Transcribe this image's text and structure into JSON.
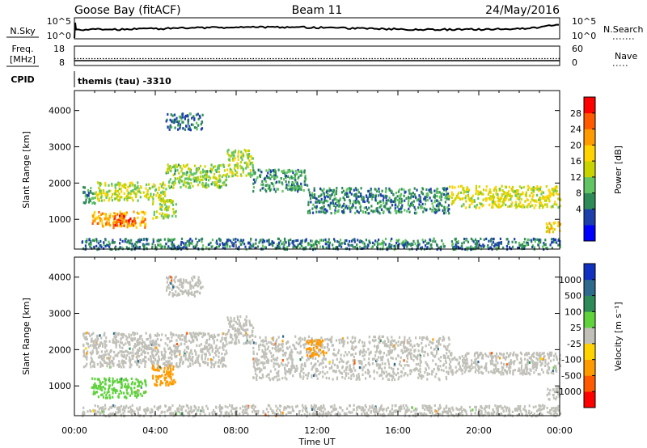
{
  "header": {
    "station": "Goose Bay (fitACF)",
    "beam": "Beam 11",
    "date": "24/May/2016"
  },
  "noise_panel": {
    "left_label": "N.Sky",
    "left_ticks": [
      "10^5",
      "10^0"
    ],
    "right_label": "N.Search",
    "right_ticks": [
      "10^5",
      "10^0"
    ]
  },
  "freq_panel": {
    "label_line1": "Freq.",
    "label_line2": "[MHz]",
    "left_ticks": [
      "18",
      "8"
    ],
    "right_label": "Nave",
    "right_ticks": [
      "60",
      "0"
    ]
  },
  "cpid": {
    "label": "CPID",
    "value": "themis (tau) -3310"
  },
  "power_panel": {
    "ylabel": "Slant Range [km]",
    "yticks": [
      "4000",
      "3000",
      "2000",
      "1000"
    ],
    "colorbar_label": "Power [dB]",
    "colorbar_ticks": [
      "28",
      "24",
      "20",
      "16",
      "12",
      "8",
      "4"
    ],
    "colors": [
      "#0000ff",
      "#1c3faa",
      "#2e8b57",
      "#62c462",
      "#c8d400",
      "#ffd200",
      "#ff9b00",
      "#ff5a00",
      "#ff0000"
    ]
  },
  "velocity_panel": {
    "ylabel": "Slant Range [km]",
    "yticks": [
      "4000",
      "3000",
      "2000",
      "1000"
    ],
    "colorbar_label": "Velocity [m s⁻¹]",
    "colorbar_ticks": [
      "1000",
      "500",
      "100",
      "25",
      "-25",
      "-100",
      "-500",
      "-1000"
    ],
    "colors": [
      "#1030c0",
      "#2d6a8c",
      "#2e8b57",
      "#5fd23c",
      "#c0c0b8",
      "#ffd200",
      "#ff9b00",
      "#ff5a00",
      "#ff0000"
    ]
  },
  "x_axis": {
    "label": "Time UT",
    "ticks": [
      "00:00",
      "04:00",
      "08:00",
      "12:00",
      "16:00",
      "20:00",
      "00:00"
    ]
  },
  "chart_data": [
    {
      "type": "heatmap",
      "name": "power",
      "x_range_hours": [
        0,
        24
      ],
      "y_range_km": [
        180,
        4550
      ],
      "value_unit": "dB",
      "value_range": [
        0,
        32
      ],
      "regions": [
        {
          "x0": 0.4,
          "x1": 1.0,
          "y0": 1450,
          "y1": 1950,
          "value": 10
        },
        {
          "x0": 1.0,
          "x1": 4.5,
          "y0": 1550,
          "y1": 2050,
          "value": 16
        },
        {
          "x0": 4.5,
          "x1": 7.5,
          "y0": 1900,
          "y1": 2550,
          "value": 14
        },
        {
          "x0": 7.5,
          "x1": 8.8,
          "y0": 2200,
          "y1": 2950,
          "value": 15
        },
        {
          "x0": 8.8,
          "x1": 11.5,
          "y0": 1800,
          "y1": 2400,
          "value": 10
        },
        {
          "x0": 11.5,
          "x1": 18.5,
          "y0": 1200,
          "y1": 1900,
          "value": 9
        },
        {
          "x0": 18.5,
          "x1": 24.0,
          "y0": 1350,
          "y1": 1950,
          "value": 17
        },
        {
          "x0": 0.8,
          "x1": 3.5,
          "y0": 800,
          "y1": 1250,
          "value": 22
        },
        {
          "x0": 1.9,
          "x1": 3.0,
          "y0": 850,
          "y1": 1150,
          "value": 28
        },
        {
          "x0": 3.8,
          "x1": 5.0,
          "y0": 1050,
          "y1": 1600,
          "value": 15
        },
        {
          "x0": 4.5,
          "x1": 6.3,
          "y0": 3500,
          "y1": 3950,
          "value": 8
        },
        {
          "x0": 0.3,
          "x1": 24.0,
          "y0": 200,
          "y1": 500,
          "value": 8
        },
        {
          "x0": 23.3,
          "x1": 24.0,
          "y0": 650,
          "y1": 950,
          "value": 20
        }
      ]
    },
    {
      "type": "heatmap",
      "name": "velocity",
      "x_range_hours": [
        0,
        24
      ],
      "y_range_km": [
        180,
        4550
      ],
      "value_unit": "m s^-1",
      "value_range": [
        -1000,
        1000
      ],
      "regions": [
        {
          "x0": 0.4,
          "x1": 7.5,
          "y0": 1550,
          "y1": 2500,
          "value": 0
        },
        {
          "x0": 7.5,
          "x1": 8.8,
          "y0": 2200,
          "y1": 2950,
          "value": 0
        },
        {
          "x0": 8.8,
          "x1": 18.5,
          "y0": 1200,
          "y1": 2400,
          "value": 0
        },
        {
          "x0": 18.5,
          "x1": 24.0,
          "y0": 1350,
          "y1": 1950,
          "value": 0
        },
        {
          "x0": 0.8,
          "x1": 3.5,
          "y0": 700,
          "y1": 1250,
          "value": 60
        },
        {
          "x0": 3.8,
          "x1": 5.0,
          "y0": 1050,
          "y1": 1600,
          "value": -300
        },
        {
          "x0": 11.4,
          "x1": 12.3,
          "y0": 1800,
          "y1": 2300,
          "value": -200
        },
        {
          "x0": 4.5,
          "x1": 6.3,
          "y0": 3500,
          "y1": 4050,
          "value": 0
        },
        {
          "x0": 0.3,
          "x1": 24.0,
          "y0": 200,
          "y1": 500,
          "value": 0
        },
        {
          "x0": 23.3,
          "x1": 24.0,
          "y0": 650,
          "y1": 1000,
          "value": 0
        }
      ]
    }
  ]
}
